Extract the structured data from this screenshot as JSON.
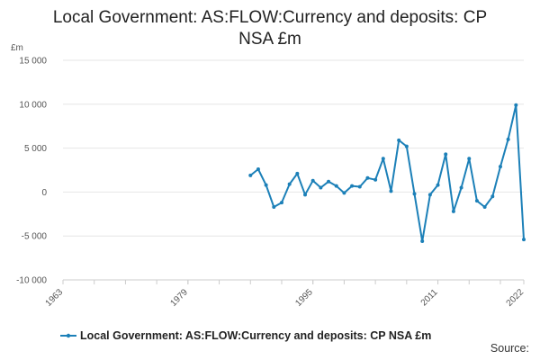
{
  "chart_data": {
    "type": "line",
    "title": "Local Government: AS:FLOW:Currency and deposits: CP NSA £m",
    "ylabel": "£m",
    "xlabel": "",
    "ylim": [
      -10000,
      15000
    ],
    "xlim": [
      1963,
      2022
    ],
    "y_ticks": [
      15000,
      10000,
      5000,
      0,
      -5000,
      -10000
    ],
    "y_tick_labels": [
      "15 000",
      "10 000",
      "5 000",
      "0",
      "-5 000",
      "-10 000"
    ],
    "x_ticks": [
      1963,
      1979,
      1995,
      2011,
      2022
    ],
    "x_tick_labels": [
      "1963",
      "1979",
      "1995",
      "2011",
      "2022"
    ],
    "grid": "horizontal",
    "legend_position": "bottom",
    "series": [
      {
        "name": "Local Government: AS:FLOW:Currency and deposits: CP NSA £m",
        "color": "#1c80b8",
        "x": [
          1987,
          1988,
          1989,
          1990,
          1991,
          1992,
          1993,
          1994,
          1995,
          1996,
          1997,
          1998,
          1999,
          2000,
          2001,
          2002,
          2003,
          2004,
          2005,
          2006,
          2007,
          2008,
          2009,
          2010,
          2011,
          2012,
          2013,
          2014,
          2015,
          2016,
          2017,
          2018,
          2019,
          2020,
          2021,
          2022
        ],
        "values": [
          1900,
          2600,
          800,
          -1700,
          -1200,
          900,
          2100,
          -300,
          1300,
          500,
          1200,
          700,
          -100,
          700,
          600,
          1600,
          1400,
          3800,
          100,
          5900,
          5200,
          -200,
          -5600,
          -300,
          800,
          4300,
          -2200,
          500,
          3800,
          -1000,
          -1700,
          -500,
          2900,
          6000,
          9900,
          -5400
        ]
      }
    ]
  },
  "source": {
    "label": "Source:"
  }
}
